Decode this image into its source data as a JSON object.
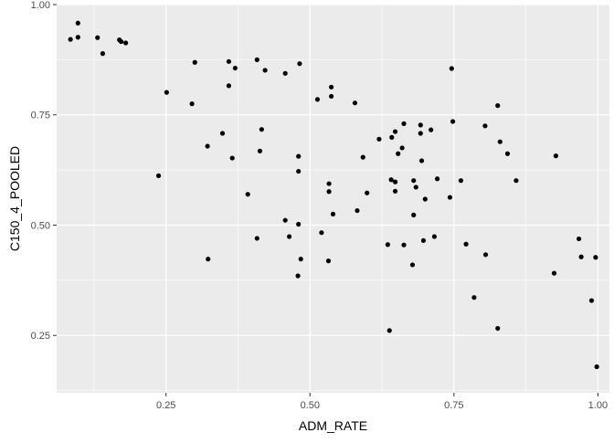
{
  "chart_data": {
    "type": "scatter",
    "title": "",
    "xlabel": "ADM_RATE",
    "ylabel": "C150_4_POOLED",
    "xlim": [
      0.06,
      1.02
    ],
    "ylim": [
      0.12,
      1.0
    ],
    "x_ticks": [
      0.25,
      0.5,
      0.75,
      1.0
    ],
    "x_tick_labels": [
      "0.25",
      "0.50",
      "0.75",
      "1.00"
    ],
    "y_ticks": [
      0.25,
      0.5,
      0.75,
      1.0
    ],
    "y_tick_labels": [
      "0.25",
      "0.50",
      "0.75",
      "1.00"
    ],
    "grid": true,
    "colors": {
      "panel_background": "#ebebeb",
      "grid_major": "#ffffff",
      "point": "#000000",
      "axis_text": "#4d4d4d",
      "axis_title": "#000000",
      "tick": "#333333"
    },
    "points": [
      {
        "x": 0.084,
        "y": 0.921
      },
      {
        "x": 0.097,
        "y": 0.958
      },
      {
        "x": 0.097,
        "y": 0.926
      },
      {
        "x": 0.131,
        "y": 0.925
      },
      {
        "x": 0.14,
        "y": 0.889
      },
      {
        "x": 0.169,
        "y": 0.92
      },
      {
        "x": 0.172,
        "y": 0.916
      },
      {
        "x": 0.18,
        "y": 0.913
      },
      {
        "x": 0.237,
        "y": 0.612
      },
      {
        "x": 0.251,
        "y": 0.801
      },
      {
        "x": 0.295,
        "y": 0.775
      },
      {
        "x": 0.3,
        "y": 0.869
      },
      {
        "x": 0.322,
        "y": 0.679
      },
      {
        "x": 0.323,
        "y": 0.423
      },
      {
        "x": 0.348,
        "y": 0.708
      },
      {
        "x": 0.359,
        "y": 0.871
      },
      {
        "x": 0.359,
        "y": 0.816
      },
      {
        "x": 0.365,
        "y": 0.652
      },
      {
        "x": 0.37,
        "y": 0.856
      },
      {
        "x": 0.392,
        "y": 0.57
      },
      {
        "x": 0.408,
        "y": 0.875
      },
      {
        "x": 0.408,
        "y": 0.47
      },
      {
        "x": 0.413,
        "y": 0.668
      },
      {
        "x": 0.416,
        "y": 0.717
      },
      {
        "x": 0.422,
        "y": 0.851
      },
      {
        "x": 0.457,
        "y": 0.844
      },
      {
        "x": 0.457,
        "y": 0.511
      },
      {
        "x": 0.464,
        "y": 0.474
      },
      {
        "x": 0.479,
        "y": 0.385
      },
      {
        "x": 0.48,
        "y": 0.656
      },
      {
        "x": 0.48,
        "y": 0.622
      },
      {
        "x": 0.48,
        "y": 0.502
      },
      {
        "x": 0.482,
        "y": 0.866
      },
      {
        "x": 0.484,
        "y": 0.423
      },
      {
        "x": 0.513,
        "y": 0.785
      },
      {
        "x": 0.52,
        "y": 0.483
      },
      {
        "x": 0.532,
        "y": 0.419
      },
      {
        "x": 0.533,
        "y": 0.594
      },
      {
        "x": 0.533,
        "y": 0.576
      },
      {
        "x": 0.537,
        "y": 0.813
      },
      {
        "x": 0.537,
        "y": 0.792
      },
      {
        "x": 0.54,
        "y": 0.525
      },
      {
        "x": 0.578,
        "y": 0.777
      },
      {
        "x": 0.582,
        "y": 0.533
      },
      {
        "x": 0.592,
        "y": 0.654
      },
      {
        "x": 0.599,
        "y": 0.573
      },
      {
        "x": 0.62,
        "y": 0.695
      },
      {
        "x": 0.635,
        "y": 0.456
      },
      {
        "x": 0.638,
        "y": 0.261
      },
      {
        "x": 0.641,
        "y": 0.603
      },
      {
        "x": 0.642,
        "y": 0.699
      },
      {
        "x": 0.648,
        "y": 0.712
      },
      {
        "x": 0.648,
        "y": 0.598
      },
      {
        "x": 0.648,
        "y": 0.577
      },
      {
        "x": 0.653,
        "y": 0.662
      },
      {
        "x": 0.66,
        "y": 0.675
      },
      {
        "x": 0.663,
        "y": 0.73
      },
      {
        "x": 0.663,
        "y": 0.455
      },
      {
        "x": 0.678,
        "y": 0.41
      },
      {
        "x": 0.68,
        "y": 0.523
      },
      {
        "x": 0.68,
        "y": 0.601
      },
      {
        "x": 0.684,
        "y": 0.586
      },
      {
        "x": 0.692,
        "y": 0.727
      },
      {
        "x": 0.692,
        "y": 0.708
      },
      {
        "x": 0.694,
        "y": 0.646
      },
      {
        "x": 0.697,
        "y": 0.465
      },
      {
        "x": 0.7,
        "y": 0.559
      },
      {
        "x": 0.71,
        "y": 0.716
      },
      {
        "x": 0.716,
        "y": 0.474
      },
      {
        "x": 0.721,
        "y": 0.605
      },
      {
        "x": 0.743,
        "y": 0.563
      },
      {
        "x": 0.746,
        "y": 0.855
      },
      {
        "x": 0.748,
        "y": 0.735
      },
      {
        "x": 0.762,
        "y": 0.601
      },
      {
        "x": 0.771,
        "y": 0.457
      },
      {
        "x": 0.785,
        "y": 0.336
      },
      {
        "x": 0.804,
        "y": 0.725
      },
      {
        "x": 0.805,
        "y": 0.433
      },
      {
        "x": 0.826,
        "y": 0.771
      },
      {
        "x": 0.826,
        "y": 0.266
      },
      {
        "x": 0.83,
        "y": 0.689
      },
      {
        "x": 0.843,
        "y": 0.662
      },
      {
        "x": 0.858,
        "y": 0.601
      },
      {
        "x": 0.924,
        "y": 0.391
      },
      {
        "x": 0.927,
        "y": 0.657
      },
      {
        "x": 0.967,
        "y": 0.469
      },
      {
        "x": 0.971,
        "y": 0.428
      },
      {
        "x": 0.989,
        "y": 0.329
      },
      {
        "x": 0.996,
        "y": 0.427
      },
      {
        "x": 0.998,
        "y": 0.179
      }
    ]
  }
}
